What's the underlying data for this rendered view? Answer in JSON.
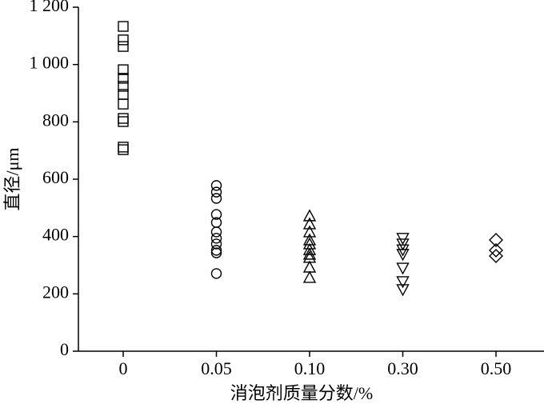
{
  "chart_data": {
    "type": "scatter",
    "x_label": "消泡剂质量分数/%",
    "y_label": "直径/μm",
    "groups": [
      {
        "category": "0",
        "marker": "square",
        "values": [
          1133,
          1086,
          1063,
          982,
          952,
          924,
          896,
          862,
          812,
          801,
          712,
          703
        ]
      },
      {
        "category": "0.05",
        "marker": "circle",
        "values": [
          578,
          555,
          533,
          477,
          449,
          416,
          394,
          374,
          352,
          343,
          271
        ]
      },
      {
        "category": "0.10",
        "marker": "triangle-up",
        "values": [
          472,
          444,
          416,
          388,
          374,
          354,
          338,
          327,
          293,
          257
        ]
      },
      {
        "category": "0.30",
        "marker": "triangle-down",
        "values": [
          394,
          374,
          354,
          338,
          290,
          243,
          215
        ]
      },
      {
        "category": "0.50",
        "marker": "diamond",
        "values": [
          388,
          352,
          332
        ]
      }
    ],
    "color": "#000000",
    "ylim": [
      0,
      1200
    ],
    "yticks": [
      0,
      200,
      400,
      600,
      800,
      {
        "value": 1000,
        "label": "1 000"
      },
      {
        "value": 1200,
        "label": "1 200"
      }
    ]
  }
}
